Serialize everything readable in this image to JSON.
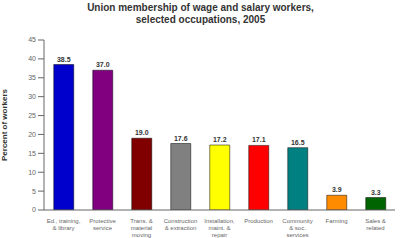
{
  "chart_data": {
    "type": "bar",
    "title": "Union membership of wage and salary workers,\nselected occupations, 2005",
    "categories": [
      "Ed., training,\n& library",
      "Protective\nservice",
      "Trans. &\nmaterial\nmoving",
      "Construction\n& extraction",
      "Installation,\nmaint. &\nrepair",
      "Production",
      "Community\n& soc.\nservices",
      "Farming",
      "Sales &\nrelated"
    ],
    "values": [
      38.5,
      37.0,
      19.0,
      17.6,
      17.2,
      17.1,
      16.5,
      3.9,
      3.3
    ],
    "value_labels": [
      "38.5",
      "37.0",
      "19.0",
      "17.6",
      "17.2",
      "17.1",
      "16.5",
      "3.9",
      "3.3"
    ],
    "data_labels": true,
    "colors": [
      "#0000cc",
      "#800080",
      "#800000",
      "#808080",
      "#ffff00",
      "#ff0000",
      "#008080",
      "#ff8c00",
      "#006400"
    ],
    "ylabel": "Percent of workers",
    "ylim": [
      0,
      45
    ],
    "yticks": [
      0,
      5,
      10,
      15,
      20,
      25,
      30,
      35,
      40,
      45
    ],
    "grid": false
  }
}
